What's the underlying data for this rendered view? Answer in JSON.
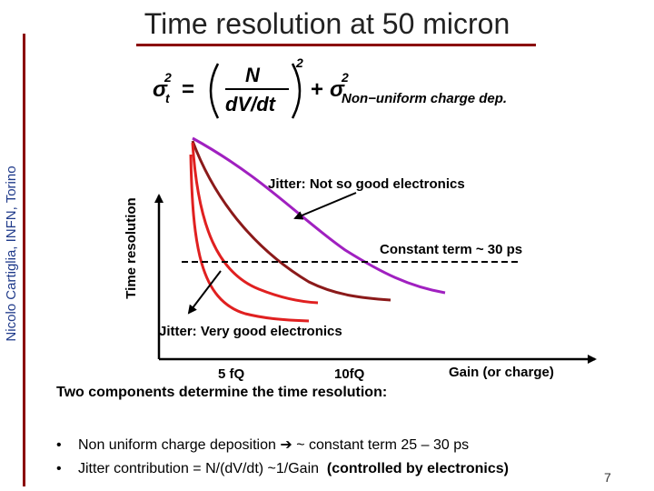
{
  "title": "Time resolution at 50 micron",
  "side_credit": "Nicolo Cartiglia, INFN, Torino",
  "formula": {
    "sigma_t": "σ",
    "sub_t": "t",
    "sup_2": "2",
    "equals": "=",
    "numerator": "N",
    "denominator": "dV/dt",
    "plus": "+",
    "sigma_nu": "σ",
    "sub_nu": "Non−uniform charge dep."
  },
  "diagram": {
    "y_label": "Time resolution",
    "x_label": "Gain (or charge)",
    "jitter_bad_label": "Jitter: Not so good electronics",
    "jitter_good_label": "Jitter: Very good electronics",
    "constant_label": "Constant term ~ 30 ps",
    "tick_5": "5 fQ",
    "tick_10": "10fQ",
    "colors": {
      "curve_purple": "#a020c0",
      "curve_darkred": "#8b1a1a",
      "curve_red": "#e02020",
      "curve_dark": "#5a1010",
      "axis": "#000000",
      "accent": "#8b0000"
    }
  },
  "summary": {
    "heading": "Two components determine the time resolution:",
    "bullets": [
      {
        "pre": "Non uniform charge deposition ",
        "arrow": "➔",
        "post": " ~ constant term 25 – 30 ps"
      },
      {
        "pre": "Jitter contribution = N/(dV/dt) ~1/Gain  ",
        "bold": "(controlled by electronics)"
      }
    ],
    "bullet_char": "•"
  },
  "page_number": "7"
}
